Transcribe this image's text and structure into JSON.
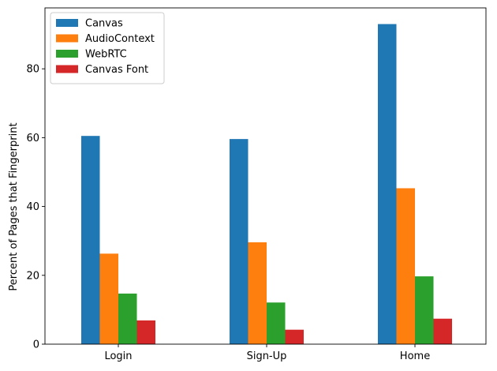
{
  "chart_data": {
    "type": "bar",
    "title": "",
    "xlabel": "",
    "ylabel": "Percent of Pages that Fingerprint",
    "categories": [
      "Login",
      "Sign-Up",
      "Home"
    ],
    "series": [
      {
        "name": "Canvas",
        "color": "#1f77b4",
        "values": [
          60.5,
          59.6,
          93.0
        ]
      },
      {
        "name": "AudioContext",
        "color": "#ff7f0e",
        "values": [
          26.3,
          29.6,
          45.3
        ]
      },
      {
        "name": "WebRTC",
        "color": "#2ca02c",
        "values": [
          14.7,
          12.1,
          19.7
        ]
      },
      {
        "name": "Canvas Font",
        "color": "#d62728",
        "values": [
          6.9,
          4.2,
          7.4
        ]
      }
    ],
    "ylim": [
      0,
      97.7
    ],
    "yticks": [
      0,
      20,
      40,
      60,
      80
    ],
    "grid": false,
    "legend_position": "top-left"
  }
}
